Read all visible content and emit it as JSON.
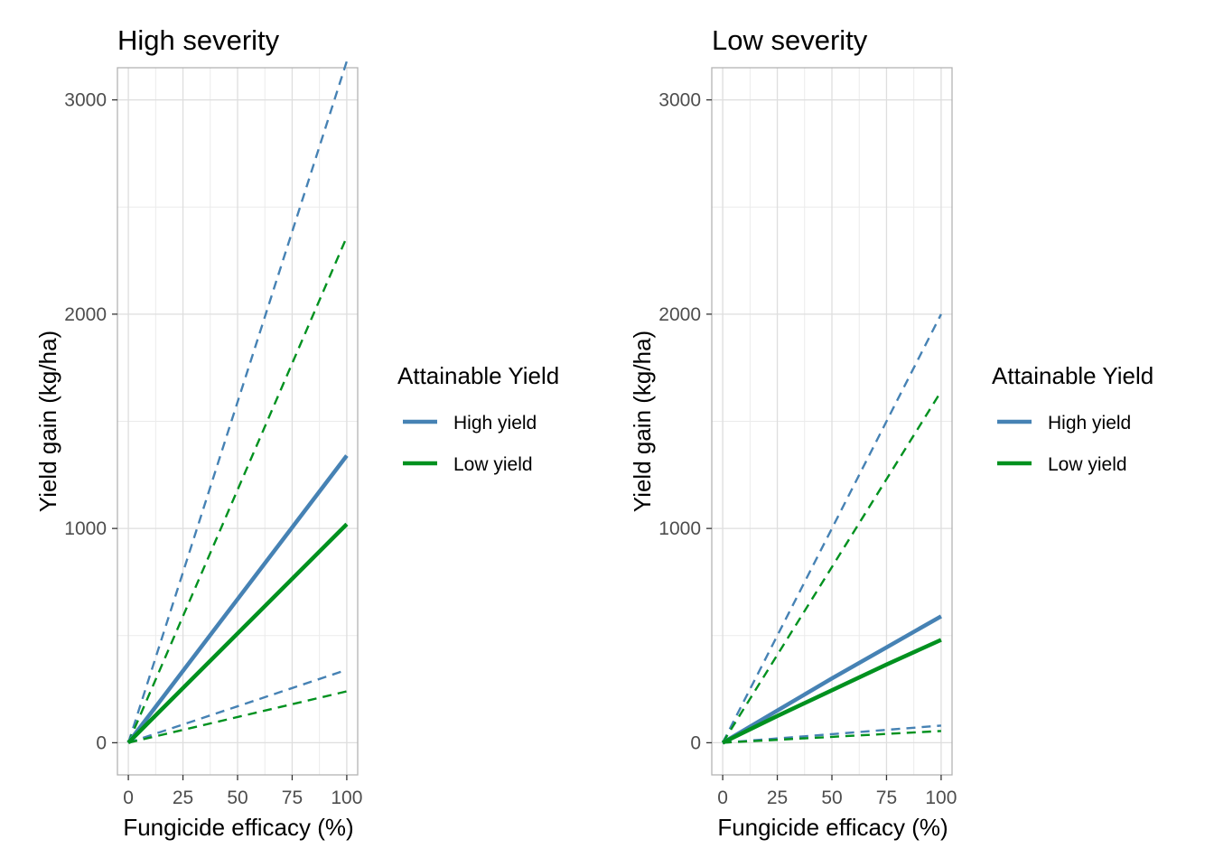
{
  "chart_data": [
    {
      "type": "line",
      "title": "High severity",
      "xlabel": "Fungicide efficacy (%)",
      "ylabel": "Yield gain (kg/ha)",
      "xlim": [
        -5,
        105
      ],
      "ylim": [
        -150,
        3150
      ],
      "x_ticks": [
        0,
        25,
        50,
        75,
        100
      ],
      "y_ticks": [
        0,
        1000,
        2000,
        3000
      ],
      "grid": true,
      "legend": {
        "title": "Attainable Yield",
        "position": "right"
      },
      "series": [
        {
          "name": "High yield",
          "color": "#4682b4",
          "style": "solid",
          "x": [
            0,
            100
          ],
          "y": [
            0,
            1340
          ]
        },
        {
          "name": "Low yield",
          "color": "#00911f",
          "style": "solid",
          "x": [
            0,
            100
          ],
          "y": [
            0,
            1020
          ]
        },
        {
          "name": "High yield",
          "color": "#4682b4",
          "style": "dashed",
          "x": [
            0,
            100
          ],
          "y": [
            0,
            3180
          ]
        },
        {
          "name": "High yield",
          "color": "#4682b4",
          "style": "dashed",
          "x": [
            0,
            100
          ],
          "y": [
            0,
            340
          ]
        },
        {
          "name": "Low yield",
          "color": "#00911f",
          "style": "dashed",
          "x": [
            0,
            100
          ],
          "y": [
            0,
            2360
          ]
        },
        {
          "name": "Low yield",
          "color": "#00911f",
          "style": "dashed",
          "x": [
            0,
            100
          ],
          "y": [
            0,
            240
          ]
        }
      ]
    },
    {
      "type": "line",
      "title": "Low severity",
      "xlabel": "Fungicide efficacy (%)",
      "ylabel": "Yield gain (kg/ha)",
      "xlim": [
        -5,
        105
      ],
      "ylim": [
        -150,
        3150
      ],
      "x_ticks": [
        0,
        25,
        50,
        75,
        100
      ],
      "y_ticks": [
        0,
        1000,
        2000,
        3000
      ],
      "grid": true,
      "legend": {
        "title": "Attainable Yield",
        "position": "right"
      },
      "series": [
        {
          "name": "High yield",
          "color": "#4682b4",
          "style": "solid",
          "x": [
            0,
            25,
            50,
            75,
            100
          ],
          "y": [
            0,
            150,
            300,
            445,
            590
          ]
        },
        {
          "name": "Low yield",
          "color": "#00911f",
          "style": "solid",
          "x": [
            0,
            25,
            50,
            75,
            100
          ],
          "y": [
            0,
            125,
            245,
            365,
            480
          ]
        },
        {
          "name": "High yield",
          "color": "#4682b4",
          "style": "dashed",
          "x": [
            0,
            100
          ],
          "y": [
            0,
            2000
          ]
        },
        {
          "name": "High yield",
          "color": "#4682b4",
          "style": "dashed",
          "x": [
            0,
            100
          ],
          "y": [
            0,
            80
          ]
        },
        {
          "name": "Low yield",
          "color": "#00911f",
          "style": "dashed",
          "x": [
            0,
            100
          ],
          "y": [
            0,
            1640
          ]
        },
        {
          "name": "Low yield",
          "color": "#00911f",
          "style": "dashed",
          "x": [
            0,
            100
          ],
          "y": [
            0,
            55
          ]
        }
      ]
    }
  ]
}
